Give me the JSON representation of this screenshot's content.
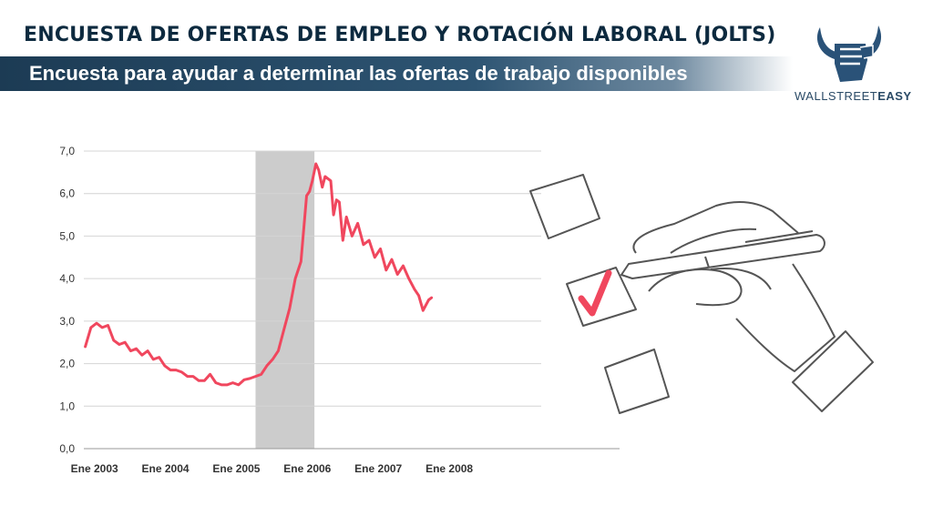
{
  "header": {
    "title": "ENCUESTA DE OFERTAS DE EMPLEO Y ROTACIÓN LABORAL (JOLTS)",
    "subtitle": "Encuesta para ayudar a determinar las ofertas de trabajo disponibles"
  },
  "logo": {
    "text_light": "WALLSTREET",
    "text_bold": "EASY"
  },
  "colors": {
    "line": "#f0475e",
    "shade": "#cccccc",
    "grid": "#d4d4d4",
    "axis_text": "#333333",
    "title": "#0d2a3f"
  },
  "chart_data": {
    "type": "line",
    "title": "",
    "xlabel": "",
    "ylabel": "",
    "x_ticks": [
      {
        "label": "Ene 2003",
        "value": 2003.0
      },
      {
        "label": "Ene 2004",
        "value": 2004.0
      },
      {
        "label": "Ene 2005",
        "value": 2005.0
      },
      {
        "label": "Ene 2006",
        "value": 2006.0
      },
      {
        "label": "Ene 2007",
        "value": 2007.0
      },
      {
        "label": "Ene 2008",
        "value": 2008.0
      }
    ],
    "y_ticks": [
      "0,0",
      "1,0",
      "2,0",
      "3,0",
      "4,0",
      "5,0",
      "6,0",
      "7,0"
    ],
    "xlim": [
      2002.85,
      2010.4
    ],
    "ylim": [
      0,
      7
    ],
    "grid": true,
    "shaded_region": [
      2005.27,
      2006.1
    ],
    "series": [
      {
        "x": [
          2002.87,
          2002.95,
          2003.03,
          2003.11,
          2003.19,
          2003.27,
          2003.35,
          2003.43,
          2003.51,
          2003.59,
          2003.67,
          2003.75,
          2003.83,
          2003.91,
          2003.99,
          2004.07,
          2004.15,
          2004.23,
          2004.31,
          2004.39,
          2004.47,
          2004.55,
          2004.63,
          2004.71,
          2004.79,
          2004.87,
          2004.95,
          2005.03,
          2005.11,
          2005.19,
          2005.27,
          2005.35,
          2005.43,
          2005.51,
          2005.59,
          2005.67,
          2005.75,
          2005.83,
          2005.91,
          2005.99,
          2006.03,
          2006.07,
          2006.12,
          2006.16,
          2006.21,
          2006.25,
          2006.33,
          2006.37,
          2006.41,
          2006.45,
          2006.5,
          2006.55,
          2006.63,
          2006.71,
          2006.79,
          2006.87,
          2006.95,
          2007.03,
          2007.11,
          2007.19,
          2007.27,
          2007.35,
          2007.43,
          2007.51,
          2007.57,
          2007.63,
          2007.71,
          2007.75
        ],
        "y": [
          2.4,
          2.85,
          2.95,
          2.85,
          2.9,
          2.55,
          2.45,
          2.5,
          2.3,
          2.35,
          2.2,
          2.3,
          2.1,
          2.15,
          1.95,
          1.85,
          1.85,
          1.8,
          1.7,
          1.7,
          1.6,
          1.6,
          1.75,
          1.55,
          1.5,
          1.5,
          1.55,
          1.5,
          1.62,
          1.65,
          1.7,
          1.75,
          1.95,
          2.1,
          2.3,
          2.8,
          3.3,
          4.0,
          4.4,
          5.95,
          6.05,
          6.3,
          6.7,
          6.55,
          6.15,
          6.4,
          6.3,
          5.5,
          5.85,
          5.8,
          4.9,
          5.45,
          5.0,
          5.3,
          4.8,
          4.9,
          4.5,
          4.7,
          4.2,
          4.45,
          4.1,
          4.3,
          4.0,
          3.75,
          3.6,
          3.25,
          3.5,
          3.55
        ]
      }
    ]
  }
}
